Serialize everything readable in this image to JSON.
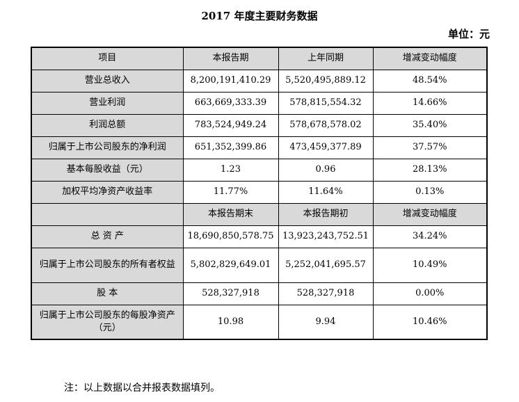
{
  "title": "2017 年度主要财务数据",
  "unit": "单位：元",
  "table": {
    "rows": [
      {
        "cells": [
          "项目",
          "本报告期",
          "上年同期",
          "增减变动幅度"
        ],
        "header": true
      },
      {
        "cells": [
          "营业总收入",
          "8,200,191,410.29",
          "5,520,495,889.12",
          "48.54%"
        ]
      },
      {
        "cells": [
          "营业利润",
          "663,669,333.39",
          "578,815,554.32",
          "14.66%"
        ]
      },
      {
        "cells": [
          "利润总额",
          "783,524,949.24",
          "578,678,578.02",
          "35.40%"
        ]
      },
      {
        "cells": [
          "归属于上市公司股东的净利润",
          "651,352,399.86",
          "473,459,377.89",
          "37.57%"
        ]
      },
      {
        "cells": [
          "基本每股收益（元）",
          "1.23",
          "0.96",
          "28.13%"
        ]
      },
      {
        "cells": [
          "加权平均净资产收益率",
          "11.77%",
          "11.64%",
          "0.13%"
        ]
      },
      {
        "cells": [
          "",
          "本报告期末",
          "本报告期初",
          "增减变动幅度"
        ],
        "header": true
      },
      {
        "cells": [
          "总 资 产",
          "18,690,850,578.75",
          "13,923,243,752.51",
          "34.24%"
        ]
      },
      {
        "cells": [
          "归属于上市公司股东的所有者权益",
          "5,802,829,649.01",
          "5,252,041,695.57",
          "10.49%"
        ],
        "tall": true
      },
      {
        "cells": [
          "股 本",
          "528,327,918",
          "528,327,918",
          "0.00%"
        ]
      },
      {
        "cells": [
          "归属于上市公司股东的每股净资产（元）",
          "10.98",
          "9.94",
          "10.46%"
        ],
        "tall": true
      }
    ]
  },
  "note": "注：以上数据以合并报表数据填列。"
}
